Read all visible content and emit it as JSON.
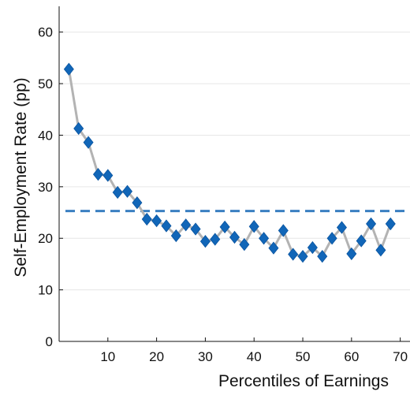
{
  "chart_data": {
    "type": "line",
    "title": "",
    "xlabel": "Percentiles of Earnings",
    "ylabel": "Self-Employment Rate (pp)",
    "xlim": [
      0,
      72
    ],
    "ylim": [
      0,
      65
    ],
    "xticks": [
      10,
      20,
      30,
      40,
      50,
      60,
      70
    ],
    "yticks": [
      0,
      10,
      20,
      30,
      40,
      50,
      60
    ],
    "grid": "horizontal",
    "reference_line": {
      "y": 25.3,
      "style": "dashed",
      "color": "#3a7fc1"
    },
    "line_color": "#b3b3b3",
    "marker_color": "#1166b8",
    "marker": "diamond",
    "series": [
      {
        "x": [
          2,
          4,
          6,
          8,
          10,
          12,
          14,
          16,
          18,
          20,
          22,
          24,
          26,
          28,
          30,
          32,
          34,
          36,
          38,
          40,
          42,
          44,
          46,
          48,
          50,
          52,
          54,
          56,
          58,
          60,
          62,
          64,
          66,
          68
        ],
        "y": [
          52.8,
          41.3,
          38.6,
          32.4,
          32.2,
          28.9,
          29.1,
          26.9,
          23.7,
          23.4,
          22.4,
          20.5,
          22.6,
          21.8,
          19.4,
          19.8,
          22.2,
          20.2,
          18.8,
          22.3,
          20.0,
          18.1,
          21.5,
          16.9,
          16.5,
          18.2,
          16.5,
          20.0,
          22.1,
          17.0,
          19.5,
          22.8,
          17.7,
          22.8
        ]
      }
    ]
  }
}
